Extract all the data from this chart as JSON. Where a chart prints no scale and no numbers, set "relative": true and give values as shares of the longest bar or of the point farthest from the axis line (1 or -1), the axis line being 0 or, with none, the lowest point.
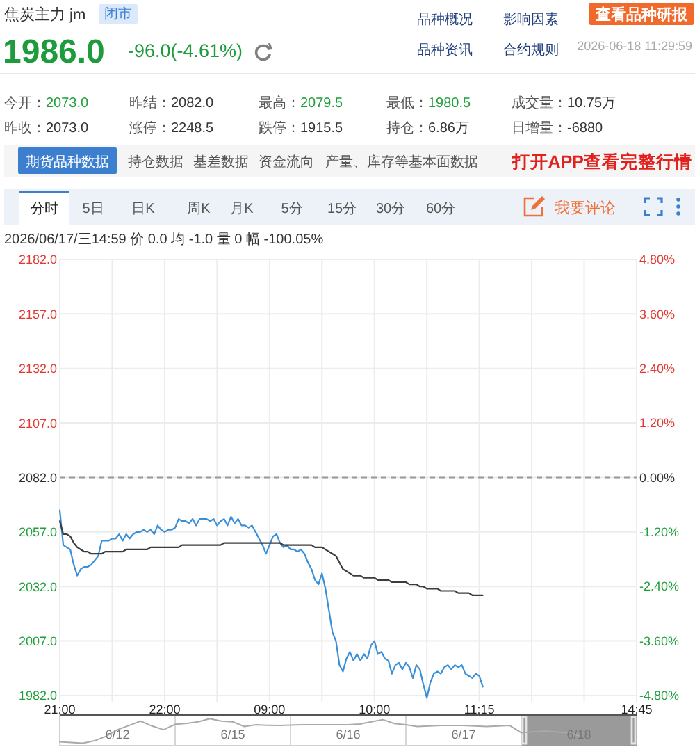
{
  "chart_data": [
    {
      "type": "line",
      "title": "焦炭主力 jm",
      "annotations": [
        "闭市",
        "1986.0",
        "-96.0(-4.61%)",
        "品种概况",
        "影响因素",
        "查看品种研报",
        "品种资讯",
        "合约规则",
        "2026-06-18 11:29:59",
        "今开：2073.0",
        "昨结：2082.0",
        "最高：2079.5",
        "最低：1980.5",
        "成交量：10.75万",
        "昨收：2073.0",
        "涨停：2248.5",
        "跌停：1915.5",
        "持仓：6.86万",
        "日增量：-6880",
        "期货品种数据",
        "持仓数据",
        "基差数据",
        "资金流向",
        "产量、库存等基本面数据",
        "打开APP查看完整行情",
        "分时",
        "5日",
        "日K",
        "周K",
        "月K",
        "5分",
        "15分",
        "30分",
        "60分",
        "我要评论",
        "2026/06/17/三14:59 价 0.0 均 -1.0 量 0 幅 -100.05%"
      ],
      "categories": [
        "21:00",
        null,
        null,
        null,
        null,
        null,
        null,
        null,
        null,
        null,
        null,
        null,
        null,
        null,
        null,
        null,
        null,
        null,
        null,
        null,
        null,
        null,
        null,
        null,
        null,
        null,
        null,
        null,
        null,
        null,
        "22:00",
        null,
        null,
        null,
        null,
        null,
        null,
        null,
        null,
        null,
        null,
        null,
        null,
        null,
        null,
        null,
        null,
        null,
        null,
        null,
        null,
        null,
        null,
        null,
        null,
        null,
        null,
        null,
        null,
        null,
        "09:00",
        null,
        null,
        null,
        null,
        null,
        null,
        null,
        null,
        null,
        null,
        null,
        null,
        null,
        null,
        null,
        null,
        null,
        null,
        null,
        null,
        null,
        null,
        null,
        null,
        null,
        null,
        null,
        null,
        null,
        "10:00",
        null,
        null,
        null,
        null,
        null,
        null,
        null,
        null,
        null,
        null,
        null,
        null,
        null,
        null,
        null,
        null,
        null,
        null,
        null,
        null,
        null,
        null,
        null,
        null,
        null,
        null,
        null,
        null,
        null,
        "11:15",
        null,
        null,
        null,
        null,
        null,
        null,
        null,
        null,
        null,
        null,
        null,
        null,
        null,
        null,
        null,
        null,
        null,
        null,
        null,
        null,
        null,
        null,
        null,
        null,
        null,
        null,
        null,
        null,
        null,
        null,
        null,
        null,
        null,
        null,
        null,
        null,
        null,
        null,
        null,
        null,
        null,
        null,
        null,
        null,
        "14:45"
      ],
      "series": [
        {
          "color": "#3a8fd9",
          "values": [
            2067,
            2051,
            2050,
            2049,
            2042,
            2037,
            2040,
            2041,
            2041,
            2042,
            2044,
            2046,
            2053,
            2053,
            2053,
            2054,
            2054,
            2056,
            2053,
            2056,
            2054,
            2056,
            2057,
            2057,
            2058,
            2057,
            2058,
            2056,
            2060,
            2058,
            2057,
            2058,
            2058,
            2059,
            2063,
            2062,
            2062,
            2061,
            2063,
            2060,
            2063,
            2063,
            2063,
            2062,
            2063,
            2060,
            2062,
            2063,
            2060,
            2064,
            2061,
            2063,
            2060,
            2060,
            2059,
            2060,
            2057,
            2054,
            2051,
            2047,
            2051,
            2055,
            2056,
            2052,
            2050,
            2051,
            2049,
            2049,
            2048,
            2049,
            2047,
            2043,
            2040,
            2035,
            2033,
            2038,
            2031,
            2021,
            2011,
            2007,
            1996,
            1993,
            1999,
            2002,
            1998,
            2001,
            1998,
            2001,
            1999,
            2005,
            2007,
            2001,
            2002,
            1999,
            1998,
            1992,
            1996,
            1997,
            1994,
            1997,
            1995,
            1990,
            1996,
            1994,
            1987,
            1981,
            1988,
            1992,
            1993,
            1992,
            1995,
            1996,
            1994,
            1996,
            1995,
            1996,
            1992,
            1991,
            1990,
            1992,
            1991,
            1986,
            null,
            null,
            null,
            null,
            null,
            null,
            null,
            null,
            null,
            null,
            null,
            null,
            null,
            null,
            null,
            null,
            null,
            null,
            null,
            null,
            null,
            null,
            null,
            null,
            null,
            null,
            null,
            null,
            null,
            null,
            null,
            null,
            null,
            null,
            null,
            null,
            null,
            null,
            null,
            null,
            null,
            null,
            null,
            null
          ]
        },
        {
          "color": "#3c3c3c",
          "values": [
            2062,
            2056,
            2056,
            2055,
            2052,
            2050,
            2049,
            2048,
            2048,
            2047,
            2047,
            2047,
            2047,
            2048,
            2048,
            2048,
            2048,
            2048,
            2048,
            2049,
            2049,
            2049,
            2049,
            2049,
            2049,
            2049,
            2050,
            2050,
            2050,
            2050,
            2050,
            2050,
            2050,
            2050,
            2050,
            2051,
            2051,
            2051,
            2051,
            2051,
            2051,
            2051,
            2051,
            2051,
            2051,
            2051,
            2051,
            2052,
            2052,
            2052,
            2052,
            2052,
            2052,
            2052,
            2052,
            2052,
            2052,
            2052,
            2052,
            2052,
            2052,
            2052,
            2052,
            2052,
            2051,
            2051,
            2051,
            2051,
            2051,
            2051,
            2051,
            2051,
            2051,
            2050,
            2050,
            2050,
            2049,
            2048,
            2047,
            2046,
            2043,
            2040,
            2039,
            2038,
            2037,
            2037,
            2037,
            2036,
            2036,
            2036,
            2036,
            2035,
            2035,
            2035,
            2035,
            2034,
            2034,
            2034,
            2034,
            2034,
            2033,
            2033,
            2033,
            2032,
            2032,
            2031,
            2031,
            2031,
            2031,
            2030,
            2030,
            2030,
            2030,
            2030,
            2029,
            2029,
            2029,
            2029,
            2028,
            2028,
            2028,
            2028,
            null,
            null,
            null,
            null,
            null,
            null,
            null,
            null,
            null,
            null,
            null,
            null,
            null,
            null,
            null,
            null,
            null,
            null,
            null,
            null,
            null,
            null,
            null,
            null,
            null,
            null,
            null,
            null,
            null,
            null,
            null,
            null,
            null,
            null,
            null,
            null,
            null,
            null,
            null,
            null,
            null,
            null,
            null,
            null
          ]
        }
      ],
      "ylim": [
        1979,
        2182
      ],
      "yticks": [
        {
          "value": 1982,
          "label": "1982.0"
        },
        {
          "value": 2007,
          "label": "2007.0"
        },
        {
          "value": 2032,
          "label": "2032.0"
        },
        {
          "value": 2057,
          "label": "2057.0"
        },
        {
          "value": 2082,
          "label": "2082.0"
        },
        {
          "value": 2107,
          "label": "2107.0"
        },
        {
          "value": 2132,
          "label": "2132.0"
        },
        {
          "value": 2157,
          "label": "2157.0"
        },
        {
          "value": 2182,
          "label": "2182.0"
        }
      ],
      "y2lim": [
        -4.95,
        4.8
      ],
      "y2ticks": [
        {
          "value": -4.8,
          "label": "-4.80%"
        },
        {
          "value": -3.6,
          "label": "-3.60%"
        },
        {
          "value": -2.4,
          "label": "-2.40%"
        },
        {
          "value": -1.2,
          "label": "-1.20%"
        },
        {
          "value": 0,
          "label": "0.00%"
        },
        {
          "value": 1.2,
          "label": "1.20%"
        },
        {
          "value": 2.4,
          "label": "2.40%"
        },
        {
          "value": 3.6,
          "label": "3.60%"
        },
        {
          "value": 4.8,
          "label": "4.80%"
        }
      ],
      "ref_lines": [
        {
          "axis": "y",
          "value": 2082,
          "color": "#9a9a9a",
          "line_style": "dashed"
        }
      ],
      "grid": true
    },
    {
      "type": "line",
      "relative": true,
      "categories": [
        null,
        null,
        null,
        null,
        null,
        "6/12",
        null,
        null,
        null,
        null,
        null,
        null,
        null,
        null,
        null,
        "6/15",
        null,
        null,
        null,
        null,
        null,
        null,
        null,
        null,
        null,
        "6/16",
        null,
        null,
        null,
        null,
        null,
        null,
        null,
        null,
        null,
        "6/17",
        null,
        null,
        null,
        null,
        null,
        null,
        null,
        null,
        null,
        "6/18",
        null,
        null,
        null,
        null,
        null
      ],
      "series": [
        {
          "color": "#aaaaaa",
          "values": [
            0.06,
            0.03,
            0,
            0.1,
            0.28,
            0.55,
            0.72,
            0.9,
            0.7,
            0.55,
            0.77,
            0.81,
            0.87,
            1,
            0.9,
            0.87,
            0.68,
            0.75,
            0.73,
            0.72,
            0.74,
            0.75,
            0.75,
            0.75,
            0.75,
            0.75,
            0.78,
            0.87,
            0.96,
            0.8,
            0.75,
            0.68,
            0.7,
            0.72,
            0.72,
            0.72,
            0.7,
            0.68,
            0.7,
            0.72,
            0.43,
            0.46,
            0.49,
            0.46,
            0.43,
            0.3,
            null,
            null,
            null,
            null,
            null
          ]
        }
      ],
      "grid": "x"
    }
  ]
}
